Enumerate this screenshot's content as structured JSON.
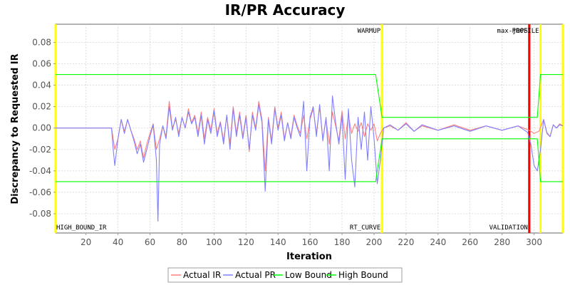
{
  "chart_data": {
    "type": "line",
    "title": "IR/PR Accuracy",
    "xlabel": "Iteration",
    "ylabel": "Discrepancy to Requested IR",
    "xlim": [
      1,
      318
    ],
    "ylim": [
      -0.098,
      0.097
    ],
    "xticks": [
      20,
      40,
      60,
      80,
      100,
      120,
      140,
      160,
      180,
      200,
      220,
      240,
      260,
      280,
      300
    ],
    "yticks": [
      -0.08,
      -0.06,
      -0.04,
      -0.02,
      0.0,
      0.02,
      0.04,
      0.06,
      0.08
    ],
    "ytick_labels": [
      "-0.08",
      "-0.06",
      "-0.04",
      "-0.02",
      "0.00",
      "0.02",
      "0.04",
      "0.06",
      "0.08"
    ],
    "grid": true,
    "legend_position": "bottom",
    "markers": [
      {
        "name": "HIGH_BOUND_IR",
        "x": 1,
        "color": "#ffff00",
        "label_position": "bottom"
      },
      {
        "name": "WARMUP",
        "x": 205,
        "color": "#ffff00",
        "label_position": "top"
      },
      {
        "name": "RT_CURVE",
        "x": 205,
        "color": "#ffff00",
        "label_position": "bottom"
      },
      {
        "name": "max-jOPS",
        "x": 297,
        "color": "#ff0000",
        "label_position": "top"
      },
      {
        "name": "VALIDATION",
        "x": 297,
        "color": "#ff0000",
        "label_position": "bottom"
      },
      {
        "name": "PROFILE",
        "x": 304,
        "color": "#ffff00",
        "label_position": "top"
      },
      {
        "name": "",
        "x": 318,
        "color": "#ffff00",
        "label_position": "none"
      }
    ],
    "series": [
      {
        "name": "Actual IR",
        "color": "#ff8080",
        "points": [
          [
            1,
            0
          ],
          [
            36,
            0
          ],
          [
            38,
            -0.02
          ],
          [
            40,
            -0.01
          ],
          [
            42,
            0.008
          ],
          [
            44,
            -0.003
          ],
          [
            46,
            0.008
          ],
          [
            48,
            -0.002
          ],
          [
            50,
            -0.01
          ],
          [
            52,
            -0.02
          ],
          [
            54,
            -0.012
          ],
          [
            56,
            -0.028
          ],
          [
            58,
            -0.015
          ],
          [
            60,
            -0.005
          ],
          [
            62,
            0.004
          ],
          [
            64,
            -0.02
          ],
          [
            66,
            -0.01
          ],
          [
            68,
            0.002
          ],
          [
            70,
            -0.008
          ],
          [
            72,
            0.025
          ],
          [
            74,
            0.0
          ],
          [
            76,
            0.008
          ],
          [
            78,
            -0.005
          ],
          [
            80,
            0.01
          ],
          [
            82,
            0.0
          ],
          [
            84,
            0.018
          ],
          [
            86,
            0.005
          ],
          [
            88,
            0.012
          ],
          [
            90,
            -0.005
          ],
          [
            92,
            0.015
          ],
          [
            94,
            -0.01
          ],
          [
            96,
            0.01
          ],
          [
            98,
            -0.002
          ],
          [
            100,
            0.018
          ],
          [
            102,
            -0.005
          ],
          [
            104,
            0.006
          ],
          [
            106,
            -0.012
          ],
          [
            108,
            0.012
          ],
          [
            110,
            -0.015
          ],
          [
            112,
            0.02
          ],
          [
            114,
            -0.005
          ],
          [
            116,
            0.015
          ],
          [
            118,
            -0.008
          ],
          [
            120,
            0.012
          ],
          [
            122,
            -0.022
          ],
          [
            124,
            0.015
          ],
          [
            126,
            0.0
          ],
          [
            128,
            0.025
          ],
          [
            130,
            0.008
          ],
          [
            132,
            -0.04
          ],
          [
            134,
            0.01
          ],
          [
            136,
            -0.012
          ],
          [
            138,
            0.02
          ],
          [
            140,
            0.0
          ],
          [
            142,
            0.015
          ],
          [
            144,
            -0.01
          ],
          [
            146,
            0.005
          ],
          [
            148,
            -0.008
          ],
          [
            150,
            0.012
          ],
          [
            152,
            0.002
          ],
          [
            154,
            -0.005
          ],
          [
            156,
            0.012
          ],
          [
            158,
            -0.01
          ],
          [
            160,
            0.008
          ],
          [
            162,
            0.018
          ],
          [
            164,
            -0.005
          ],
          [
            166,
            0.02
          ],
          [
            168,
            -0.01
          ],
          [
            170,
            0.008
          ],
          [
            172,
            -0.015
          ],
          [
            174,
            0.015
          ],
          [
            176,
            0.002
          ],
          [
            178,
            -0.012
          ],
          [
            180,
            0.016
          ],
          [
            182,
            -0.01
          ],
          [
            184,
            0.012
          ],
          [
            186,
            -0.005
          ],
          [
            188,
            0.004
          ],
          [
            190,
            -0.003
          ],
          [
            192,
            0.005
          ],
          [
            194,
            -0.008
          ],
          [
            196,
            0.004
          ],
          [
            198,
            -0.002
          ],
          [
            200,
            0.004
          ],
          [
            202,
            -0.012
          ],
          [
            204,
            -0.005
          ],
          [
            206,
            0.0
          ],
          [
            210,
            0.002
          ],
          [
            215,
            -0.002
          ],
          [
            220,
            0.005
          ],
          [
            225,
            -0.003
          ],
          [
            230,
            0.002
          ],
          [
            240,
            -0.002
          ],
          [
            250,
            0.003
          ],
          [
            260,
            -0.002
          ],
          [
            270,
            0.002
          ],
          [
            280,
            -0.002
          ],
          [
            290,
            0.002
          ],
          [
            297,
            -0.002
          ],
          [
            300,
            -0.005
          ],
          [
            303,
            -0.003
          ],
          [
            306,
            0.008
          ],
          [
            308,
            -0.005
          ],
          [
            310,
            -0.008
          ],
          [
            312,
            0.003
          ],
          [
            314,
            0.0
          ],
          [
            316,
            0.004
          ],
          [
            318,
            0.002
          ]
        ]
      },
      {
        "name": "Actual PR",
        "color": "#8080ff",
        "points": [
          [
            1,
            0
          ],
          [
            36,
            0
          ],
          [
            37,
            -0.02
          ],
          [
            38,
            -0.035
          ],
          [
            40,
            -0.01
          ],
          [
            42,
            0.008
          ],
          [
            44,
            -0.005
          ],
          [
            46,
            0.008
          ],
          [
            48,
            -0.002
          ],
          [
            50,
            -0.012
          ],
          [
            52,
            -0.024
          ],
          [
            54,
            -0.015
          ],
          [
            56,
            -0.032
          ],
          [
            58,
            -0.02
          ],
          [
            60,
            -0.008
          ],
          [
            62,
            0.003
          ],
          [
            64,
            -0.03
          ],
          [
            65,
            -0.087
          ],
          [
            66,
            -0.015
          ],
          [
            68,
            0.002
          ],
          [
            70,
            -0.01
          ],
          [
            72,
            0.02
          ],
          [
            74,
            -0.002
          ],
          [
            76,
            0.01
          ],
          [
            78,
            -0.008
          ],
          [
            80,
            0.01
          ],
          [
            82,
            0.0
          ],
          [
            84,
            0.015
          ],
          [
            86,
            0.004
          ],
          [
            88,
            0.01
          ],
          [
            90,
            -0.008
          ],
          [
            92,
            0.012
          ],
          [
            94,
            -0.015
          ],
          [
            96,
            0.008
          ],
          [
            98,
            -0.005
          ],
          [
            100,
            0.016
          ],
          [
            102,
            -0.008
          ],
          [
            104,
            0.005
          ],
          [
            106,
            -0.015
          ],
          [
            108,
            0.012
          ],
          [
            110,
            -0.02
          ],
          [
            112,
            0.018
          ],
          [
            114,
            -0.008
          ],
          [
            116,
            0.012
          ],
          [
            118,
            -0.01
          ],
          [
            120,
            0.01
          ],
          [
            122,
            -0.02
          ],
          [
            124,
            0.012
          ],
          [
            126,
            -0.002
          ],
          [
            128,
            0.022
          ],
          [
            130,
            0.005
          ],
          [
            132,
            -0.059
          ],
          [
            134,
            0.008
          ],
          [
            136,
            -0.015
          ],
          [
            138,
            0.018
          ],
          [
            140,
            -0.002
          ],
          [
            142,
            0.012
          ],
          [
            144,
            -0.012
          ],
          [
            146,
            0.005
          ],
          [
            148,
            -0.01
          ],
          [
            150,
            0.01
          ],
          [
            152,
            0.0
          ],
          [
            154,
            -0.008
          ],
          [
            156,
            0.025
          ],
          [
            158,
            -0.04
          ],
          [
            160,
            0.01
          ],
          [
            162,
            0.02
          ],
          [
            164,
            -0.008
          ],
          [
            166,
            0.022
          ],
          [
            168,
            -0.012
          ],
          [
            170,
            0.01
          ],
          [
            172,
            -0.04
          ],
          [
            174,
            0.03
          ],
          [
            176,
            0.005
          ],
          [
            178,
            -0.015
          ],
          [
            180,
            0.012
          ],
          [
            182,
            -0.048
          ],
          [
            184,
            0.018
          ],
          [
            186,
            -0.03
          ],
          [
            188,
            -0.055
          ],
          [
            190,
            0.01
          ],
          [
            192,
            -0.02
          ],
          [
            194,
            0.015
          ],
          [
            196,
            -0.03
          ],
          [
            198,
            0.02
          ],
          [
            200,
            -0.01
          ],
          [
            202,
            -0.052
          ],
          [
            204,
            -0.03
          ],
          [
            206,
            0.0
          ],
          [
            210,
            0.003
          ],
          [
            215,
            -0.002
          ],
          [
            220,
            0.004
          ],
          [
            225,
            -0.003
          ],
          [
            230,
            0.003
          ],
          [
            240,
            -0.002
          ],
          [
            250,
            0.002
          ],
          [
            260,
            -0.003
          ],
          [
            270,
            0.002
          ],
          [
            280,
            -0.002
          ],
          [
            290,
            0.002
          ],
          [
            296,
            -0.004
          ],
          [
            298,
            -0.015
          ],
          [
            300,
            -0.035
          ],
          [
            302,
            -0.04
          ],
          [
            304,
            -0.02
          ],
          [
            306,
            0.008
          ],
          [
            308,
            -0.004
          ],
          [
            310,
            -0.008
          ],
          [
            312,
            0.003
          ],
          [
            314,
            0.0
          ],
          [
            316,
            0.003
          ],
          [
            318,
            0.002
          ]
        ]
      },
      {
        "name": "Low Bound",
        "color": "#00ff00",
        "points": [
          [
            1,
            -0.05
          ],
          [
            201,
            -0.05
          ],
          [
            205,
            -0.01
          ],
          [
            302,
            -0.01
          ],
          [
            304,
            -0.05
          ],
          [
            318,
            -0.05
          ]
        ]
      },
      {
        "name": "High Bound",
        "color": "#00ff00",
        "points": [
          [
            1,
            0.05
          ],
          [
            201,
            0.05
          ],
          [
            205,
            0.01
          ],
          [
            302,
            0.01
          ],
          [
            304,
            0.05
          ],
          [
            318,
            0.05
          ]
        ]
      }
    ]
  }
}
